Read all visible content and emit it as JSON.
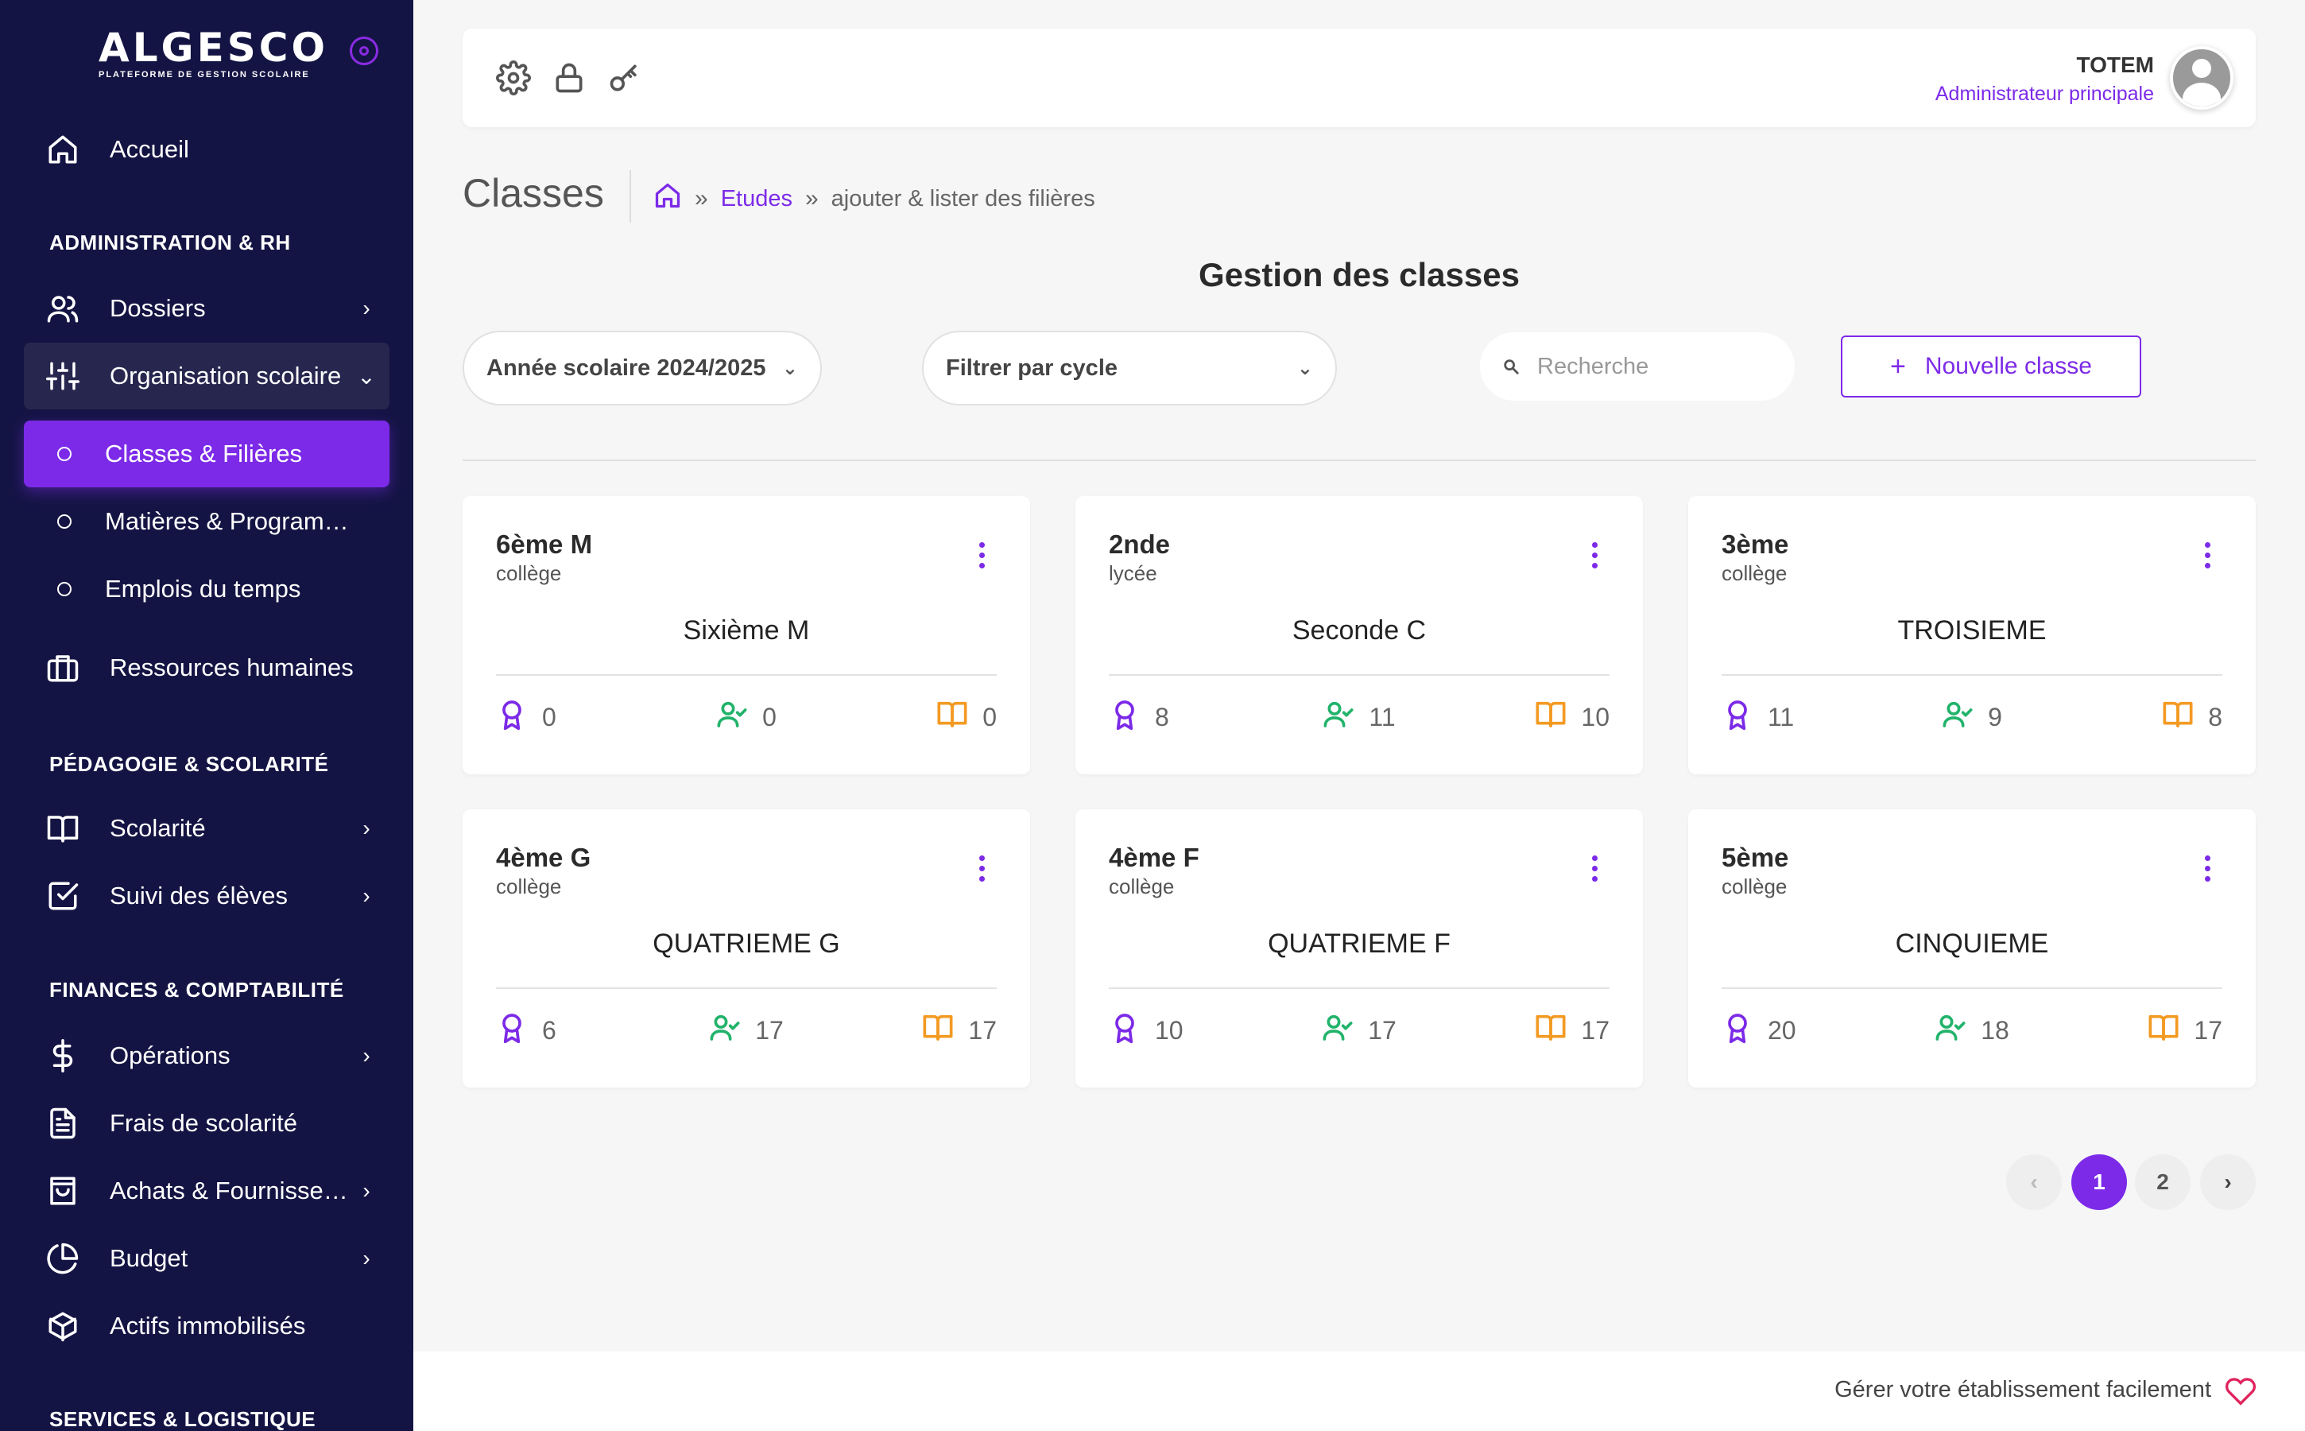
{
  "app": {
    "logo_name": "ALGESCO",
    "logo_tagline": "PLATEFORME DE GESTION SCOLAIRE"
  },
  "sidebar": {
    "home": "Accueil",
    "sections": [
      "ADMINISTRATION & RH",
      "PÉDAGOGIE & SCOLARITÉ",
      "FINANCES & COMPTABILITÉ",
      "SERVICES & LOGISTIQUE"
    ],
    "items": {
      "dossiers": "Dossiers",
      "organisation": "Organisation scolaire",
      "classes": "Classes & Filières",
      "matieres": "Matières & Programmes",
      "emplois": "Emplois du temps",
      "rh": "Ressources humaines",
      "scolarite": "Scolarité",
      "suivi": "Suivi des élèves",
      "operations": "Opérations",
      "frais": "Frais de scolarité",
      "achats": "Achats & Fournisseurs",
      "budget": "Budget",
      "actifs": "Actifs immobilisés"
    }
  },
  "topbar": {
    "icons": [
      "gear-icon",
      "lock-icon",
      "key-icon"
    ],
    "user_name": "TOTEM",
    "user_role": "Administrateur principale"
  },
  "page": {
    "title": "Classes",
    "breadcrumb": [
      "Etudes",
      "ajouter & lister des filières"
    ],
    "heading": "Gestion des classes"
  },
  "filters": {
    "year": "Année scolaire 2024/2025",
    "cycle": "Filtrer par cycle",
    "search_placeholder": "Recherche",
    "new_button": "Nouvelle classe"
  },
  "cards": [
    {
      "code": "6ème M",
      "cycle": "collège",
      "name": "Sixième M",
      "stat1": "0",
      "stat2": "0",
      "stat3": "0"
    },
    {
      "code": "2nde",
      "cycle": "lycée",
      "name": "Seconde C",
      "stat1": "8",
      "stat2": "11",
      "stat3": "10"
    },
    {
      "code": "3ème",
      "cycle": "collège",
      "name": "TROISIEME",
      "stat1": "11",
      "stat2": "9",
      "stat3": "8"
    },
    {
      "code": "4ème G",
      "cycle": "collège",
      "name": "QUATRIEME G",
      "stat1": "6",
      "stat2": "17",
      "stat3": "17"
    },
    {
      "code": "4ème F",
      "cycle": "collège",
      "name": "QUATRIEME F",
      "stat1": "10",
      "stat2": "17",
      "stat3": "17"
    },
    {
      "code": "5ème",
      "cycle": "collège",
      "name": "CINQUIEME",
      "stat1": "20",
      "stat2": "18",
      "stat3": "17"
    }
  ],
  "pagination": {
    "prev": "‹",
    "pages": [
      "1",
      "2"
    ],
    "current": "1",
    "next": "›"
  },
  "footer": {
    "text": "Gérer votre établissement facilement"
  },
  "colors": {
    "sidebar_bg": "#141444",
    "accent": "#7c2ae8",
    "green": "#22b36b",
    "orange": "#f39a23"
  }
}
